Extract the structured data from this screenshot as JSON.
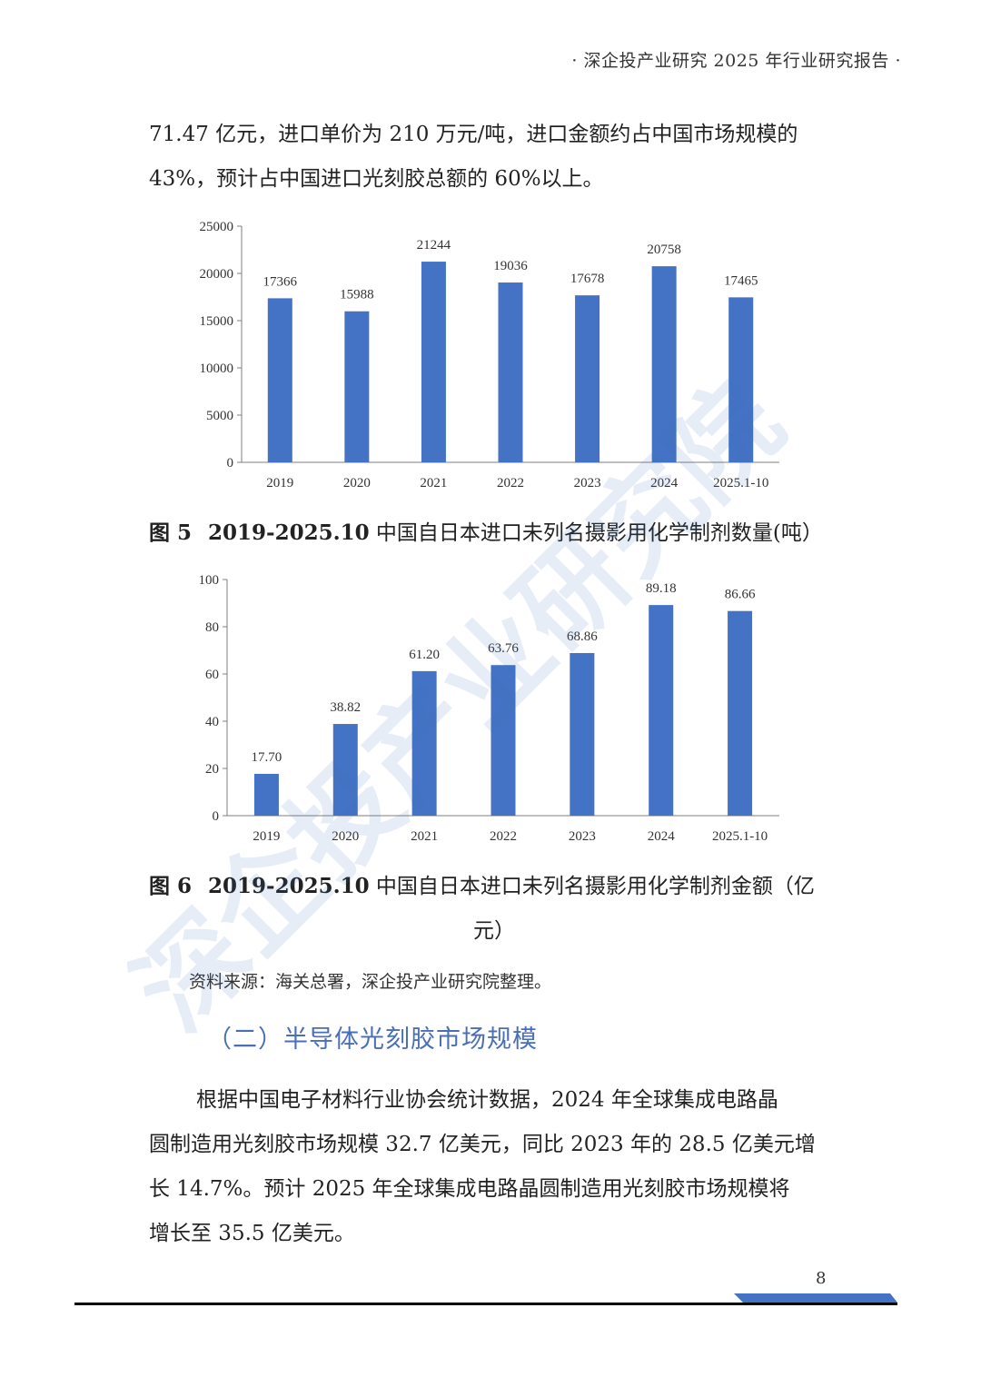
{
  "header": {
    "text": "· 深企投产业研究 2025 年行业研究报告 ·"
  },
  "intro": {
    "line1": "71.47 亿元，进口单价为 210 万元/吨，进口金额约占中国市场规模的",
    "line2": "43%，预计占中国进口光刻胶总额的 60%以上。"
  },
  "figure5": {
    "num": "图 5",
    "title_bold": "2019-2025.10",
    "title_rest": " 中国自日本进口未列名摄影用化学制剂数量(吨）"
  },
  "figure6": {
    "num": "图 6",
    "title_bold": "2019-2025.10",
    "title_rest": " 中国自日本进口未列名摄影用化学制剂金额（亿",
    "title_line2": "元）"
  },
  "source": "资料来源：海关总署，深企投产业研究院整理。",
  "section_title": "（二）半导体光刻胶市场规模",
  "body": {
    "line1": "根据中国电子材料行业协会统计数据，2024 年全球集成电路晶",
    "line2": "圆制造用光刻胶市场规模 32.7 亿美元，同比 2023 年的 28.5 亿美元增",
    "line3": "长 14.7%。预计 2025 年全球集成电路晶圆制造用光刻胶市场规模将",
    "line4": "增长至 35.5 亿美元。"
  },
  "page_number": "8",
  "watermark": "深企投产业研究院",
  "colors": {
    "bar": "#4472c4",
    "section": "#4a6fb5",
    "footer_accent": "#4472c4"
  },
  "chart_data": [
    {
      "type": "bar",
      "categories": [
        "2019",
        "2020",
        "2021",
        "2022",
        "2023",
        "2024",
        "2025.1-10"
      ],
      "values": [
        17366,
        15988,
        21244,
        19036,
        17678,
        20758,
        17465
      ],
      "value_labels": [
        "17366",
        "15988",
        "21244",
        "19036",
        "17678",
        "20758",
        "17465"
      ],
      "yticks": [
        "0",
        "5000",
        "10000",
        "15000",
        "20000",
        "25000"
      ],
      "ylim": [
        0,
        25000
      ],
      "grid": false
    },
    {
      "type": "bar",
      "categories": [
        "2019",
        "2020",
        "2021",
        "2022",
        "2023",
        "2024",
        "2025.1-10"
      ],
      "values": [
        17.7,
        38.82,
        61.2,
        63.76,
        68.86,
        89.18,
        86.66
      ],
      "value_labels": [
        "17.70",
        "38.82",
        "61.20",
        "63.76",
        "68.86",
        "89.18",
        "86.66"
      ],
      "yticks": [
        "0",
        "20",
        "40",
        "60",
        "80",
        "100"
      ],
      "ylim": [
        0,
        100
      ],
      "grid": false
    }
  ]
}
